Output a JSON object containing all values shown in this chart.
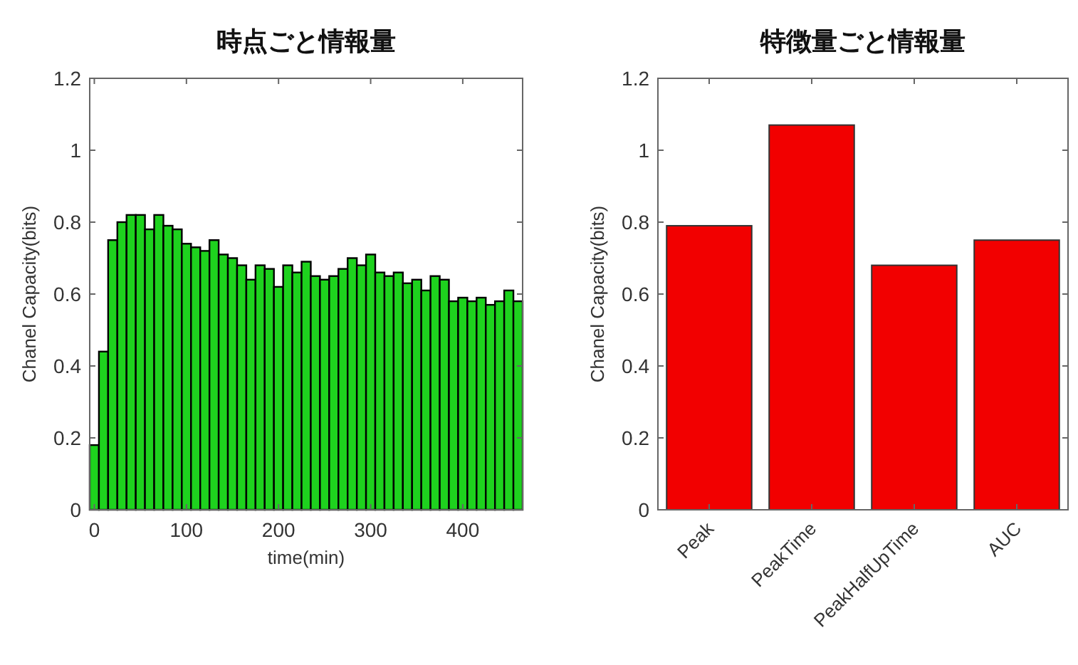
{
  "chart_data": [
    {
      "type": "bar",
      "title": "時点ごと情報量",
      "xlabel": "time(min)",
      "ylabel": "Chanel Capacity(bits)",
      "x": [
        0,
        10,
        20,
        30,
        40,
        50,
        60,
        70,
        80,
        90,
        100,
        110,
        120,
        130,
        140,
        150,
        160,
        170,
        180,
        190,
        200,
        210,
        220,
        230,
        240,
        250,
        260,
        270,
        280,
        290,
        300,
        310,
        320,
        330,
        340,
        350,
        360,
        370,
        380,
        390,
        400,
        410,
        420,
        430,
        440,
        450,
        460
      ],
      "values": [
        0.18,
        0.44,
        0.75,
        0.8,
        0.82,
        0.82,
        0.78,
        0.82,
        0.79,
        0.78,
        0.74,
        0.73,
        0.72,
        0.75,
        0.71,
        0.7,
        0.68,
        0.64,
        0.68,
        0.67,
        0.62,
        0.68,
        0.66,
        0.69,
        0.65,
        0.64,
        0.65,
        0.67,
        0.7,
        0.68,
        0.71,
        0.66,
        0.65,
        0.66,
        0.63,
        0.64,
        0.61,
        0.65,
        0.64,
        0.58,
        0.59,
        0.58,
        0.59,
        0.57,
        0.58,
        0.61,
        0.58
      ],
      "color": "#1ed21e",
      "xlim": [
        -5,
        465
      ],
      "xticks": [
        0,
        100,
        200,
        300,
        400
      ],
      "ylim": [
        0,
        1.2
      ],
      "yticks": [
        0,
        0.2,
        0.4,
        0.6,
        0.8,
        {
          "value": 1,
          "label": "1"
        },
        1.2
      ],
      "grid": false
    },
    {
      "type": "bar",
      "title": "特徴量ごと情報量",
      "ylabel": "Chanel Capacity(bits)",
      "categories": [
        "Peak",
        "PeakTime",
        "PeakHalfUpTime",
        "AUC"
      ],
      "values": [
        0.79,
        1.07,
        0.68,
        0.75
      ],
      "color": "#f20000",
      "ylim": [
        0,
        1.2
      ],
      "yticks": [
        0,
        0.2,
        0.4,
        0.6,
        0.8,
        {
          "value": 1,
          "label": "1"
        },
        1.2
      ],
      "grid": false
    }
  ]
}
